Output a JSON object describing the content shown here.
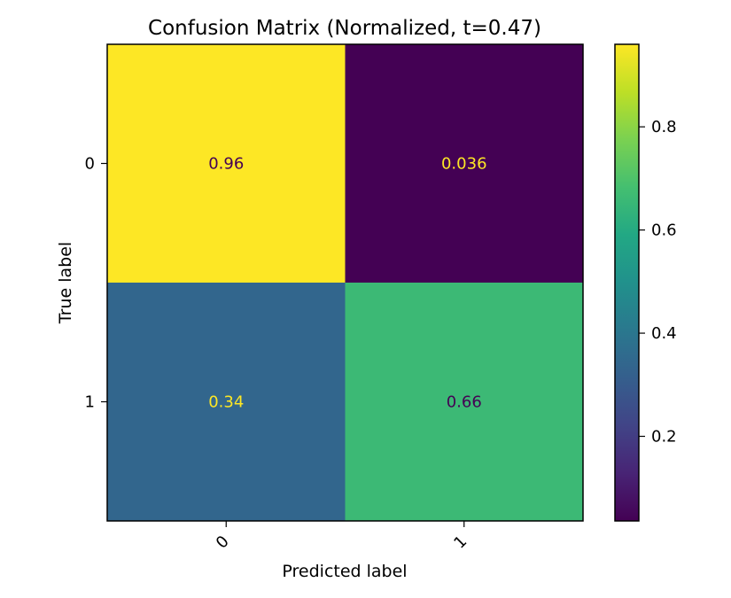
{
  "chart_data": {
    "type": "heatmap",
    "title": "Confusion Matrix (Normalized, t=0.47)",
    "xlabel": "Predicted label",
    "ylabel": "True label",
    "x_categories": [
      "0",
      "1"
    ],
    "y_categories": [
      "0",
      "1"
    ],
    "values": [
      [
        0.96,
        0.036
      ],
      [
        0.34,
        0.66
      ]
    ],
    "value_labels": [
      [
        "0.96",
        "0.036"
      ],
      [
        "0.34",
        "0.66"
      ]
    ],
    "value_label_colors": [
      [
        "#440154",
        "#fde725"
      ],
      [
        "#fde725",
        "#440154"
      ]
    ],
    "colormap": "viridis",
    "colorbar": {
      "range": [
        0.036,
        0.96
      ],
      "ticks": [
        0.2,
        0.4,
        0.6,
        0.8
      ],
      "tick_labels": [
        "0.2",
        "0.4",
        "0.6",
        "0.8"
      ]
    },
    "grid": false
  }
}
